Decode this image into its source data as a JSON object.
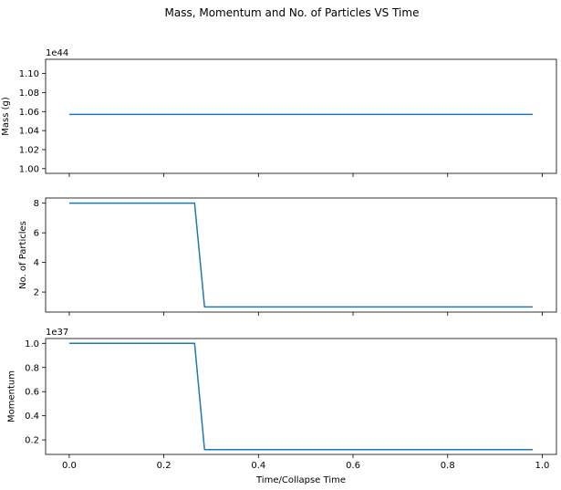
{
  "chart_data": {
    "type": "line",
    "suptitle": "Mass, Momentum and No. of Particles VS Time",
    "xlabel": "Time/Collapse Time",
    "xlim": [
      -0.05,
      1.03
    ],
    "x_ticks": [
      0.0,
      0.2,
      0.4,
      0.6,
      0.8,
      1.0
    ],
    "x_tick_labels": [
      "0.0",
      "0.2",
      "0.4",
      "0.6",
      "0.8",
      "1.0"
    ],
    "line_color": "#1f77b4",
    "grid": false,
    "legend": "none",
    "subplots": [
      {
        "id": "mass",
        "ylabel": "Mass (g)",
        "offset_label": "1e44",
        "ylim": [
          0.995,
          1.115
        ],
        "y_ticks": [
          1.0,
          1.02,
          1.04,
          1.06,
          1.08,
          1.1
        ],
        "y_tick_labels": [
          "1.00",
          "1.02",
          "1.04",
          "1.06",
          "1.08",
          "1.10"
        ],
        "x": [
          0.0,
          0.98
        ],
        "y": [
          1.057,
          1.057
        ]
      },
      {
        "id": "particles",
        "ylabel": "No. of Particles",
        "offset_label": "",
        "ylim": [
          0.65,
          8.35
        ],
        "y_ticks": [
          2,
          4,
          6,
          8
        ],
        "y_tick_labels": [
          "2",
          "4",
          "6",
          "8"
        ],
        "x": [
          0.0,
          0.265,
          0.286,
          0.98
        ],
        "y": [
          8,
          8,
          1,
          1
        ]
      },
      {
        "id": "momentum",
        "ylabel": "Momentum",
        "offset_label": "1e37",
        "ylim": [
          0.08,
          1.04
        ],
        "y_ticks": [
          0.2,
          0.4,
          0.6,
          0.8,
          1.0
        ],
        "y_tick_labels": [
          "0.2",
          "0.4",
          "0.6",
          "0.8",
          "1.0"
        ],
        "x": [
          0.0,
          0.265,
          0.286,
          0.98
        ],
        "y": [
          1.0,
          1.0,
          0.12,
          0.12
        ]
      }
    ]
  }
}
